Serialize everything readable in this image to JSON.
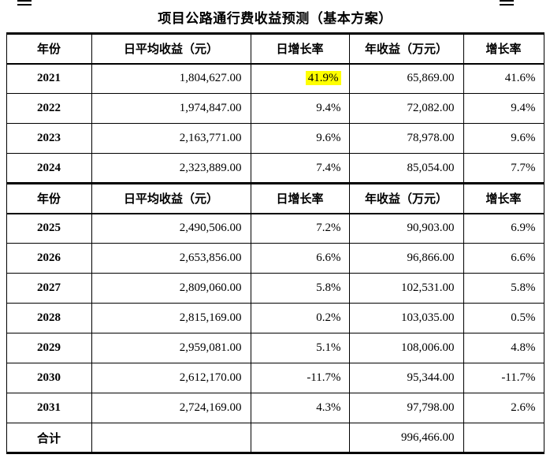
{
  "document": {
    "title": "项目公路通行费收益预测（基本方案）"
  },
  "table": {
    "headers": [
      "年份",
      "日平均收益（元）",
      "日增长率",
      "年收益（万元）",
      "增长率"
    ],
    "rows": [
      {
        "year": "2021",
        "daily_avg": "1,804,627.00",
        "daily_growth": "41.9%",
        "annual": "65,869.00",
        "growth": "41.6%"
      },
      {
        "year": "2022",
        "daily_avg": "1,974,847.00",
        "daily_growth": "9.4%",
        "annual": "72,082.00",
        "growth": "9.4%"
      },
      {
        "year": "2023",
        "daily_avg": "2,163,771.00",
        "daily_growth": "9.6%",
        "annual": "78,978.00",
        "growth": "9.6%"
      },
      {
        "year": "2024",
        "daily_avg": "2,323,889.00",
        "daily_growth": "7.4%",
        "annual": "85,054.00",
        "growth": "7.7%"
      },
      {
        "year": "2025",
        "daily_avg": "2,490,506.00",
        "daily_growth": "7.2%",
        "annual": "90,903.00",
        "growth": "6.9%"
      },
      {
        "year": "2026",
        "daily_avg": "2,653,856.00",
        "daily_growth": "6.6%",
        "annual": "96,866.00",
        "growth": "6.6%"
      },
      {
        "year": "2027",
        "daily_avg": "2,809,060.00",
        "daily_growth": "5.8%",
        "annual": "102,531.00",
        "growth": "5.8%"
      },
      {
        "year": "2028",
        "daily_avg": "2,815,169.00",
        "daily_growth": "0.2%",
        "annual": "103,035.00",
        "growth": "0.5%"
      },
      {
        "year": "2029",
        "daily_avg": "2,959,081.00",
        "daily_growth": "5.1%",
        "annual": "108,006.00",
        "growth": "4.8%"
      },
      {
        "year": "2030",
        "daily_avg": "2,612,170.00",
        "daily_growth": "-11.7%",
        "annual": "95,344.00",
        "growth": "-11.7%"
      },
      {
        "year": "2031",
        "daily_avg": "2,724,169.00",
        "daily_growth": "4.3%",
        "annual": "97,798.00",
        "growth": "2.6%"
      }
    ],
    "total": {
      "label": "合计",
      "annual": "996,466.00"
    },
    "highlight_color": "#ffff00"
  }
}
